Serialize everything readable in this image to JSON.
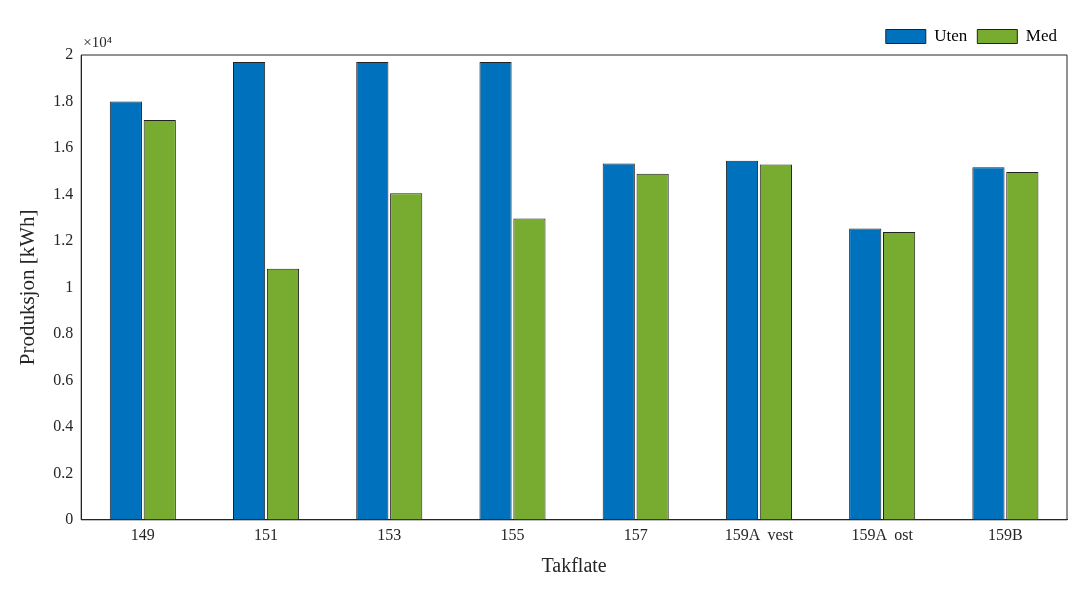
{
  "chart_data": {
    "type": "bar",
    "xlabel": "Takflate",
    "ylabel": "Produksjon [kWh]",
    "categories": [
      "149",
      "151",
      "153",
      "155",
      "157",
      "159A  vest",
      "159A  ost",
      "159B"
    ],
    "series": [
      {
        "name": "Uten",
        "color": "#0072bd",
        "values": [
          1.8,
          1.97,
          1.97,
          1.97,
          1.533,
          1.545,
          1.253,
          1.517
        ]
      },
      {
        "name": "Med",
        "color": "#77ac30",
        "values": [
          1.72,
          1.08,
          1.405,
          1.297,
          1.489,
          1.529,
          1.238,
          1.497
        ]
      }
    ],
    "ylim": [
      0,
      2
    ],
    "yticks": [
      0,
      0.2,
      0.4,
      0.6,
      0.8,
      1,
      1.2,
      1.4,
      1.6,
      1.8,
      2
    ],
    "annotations": [
      "×10⁴"
    ],
    "grid": false,
    "legend": "top right"
  }
}
